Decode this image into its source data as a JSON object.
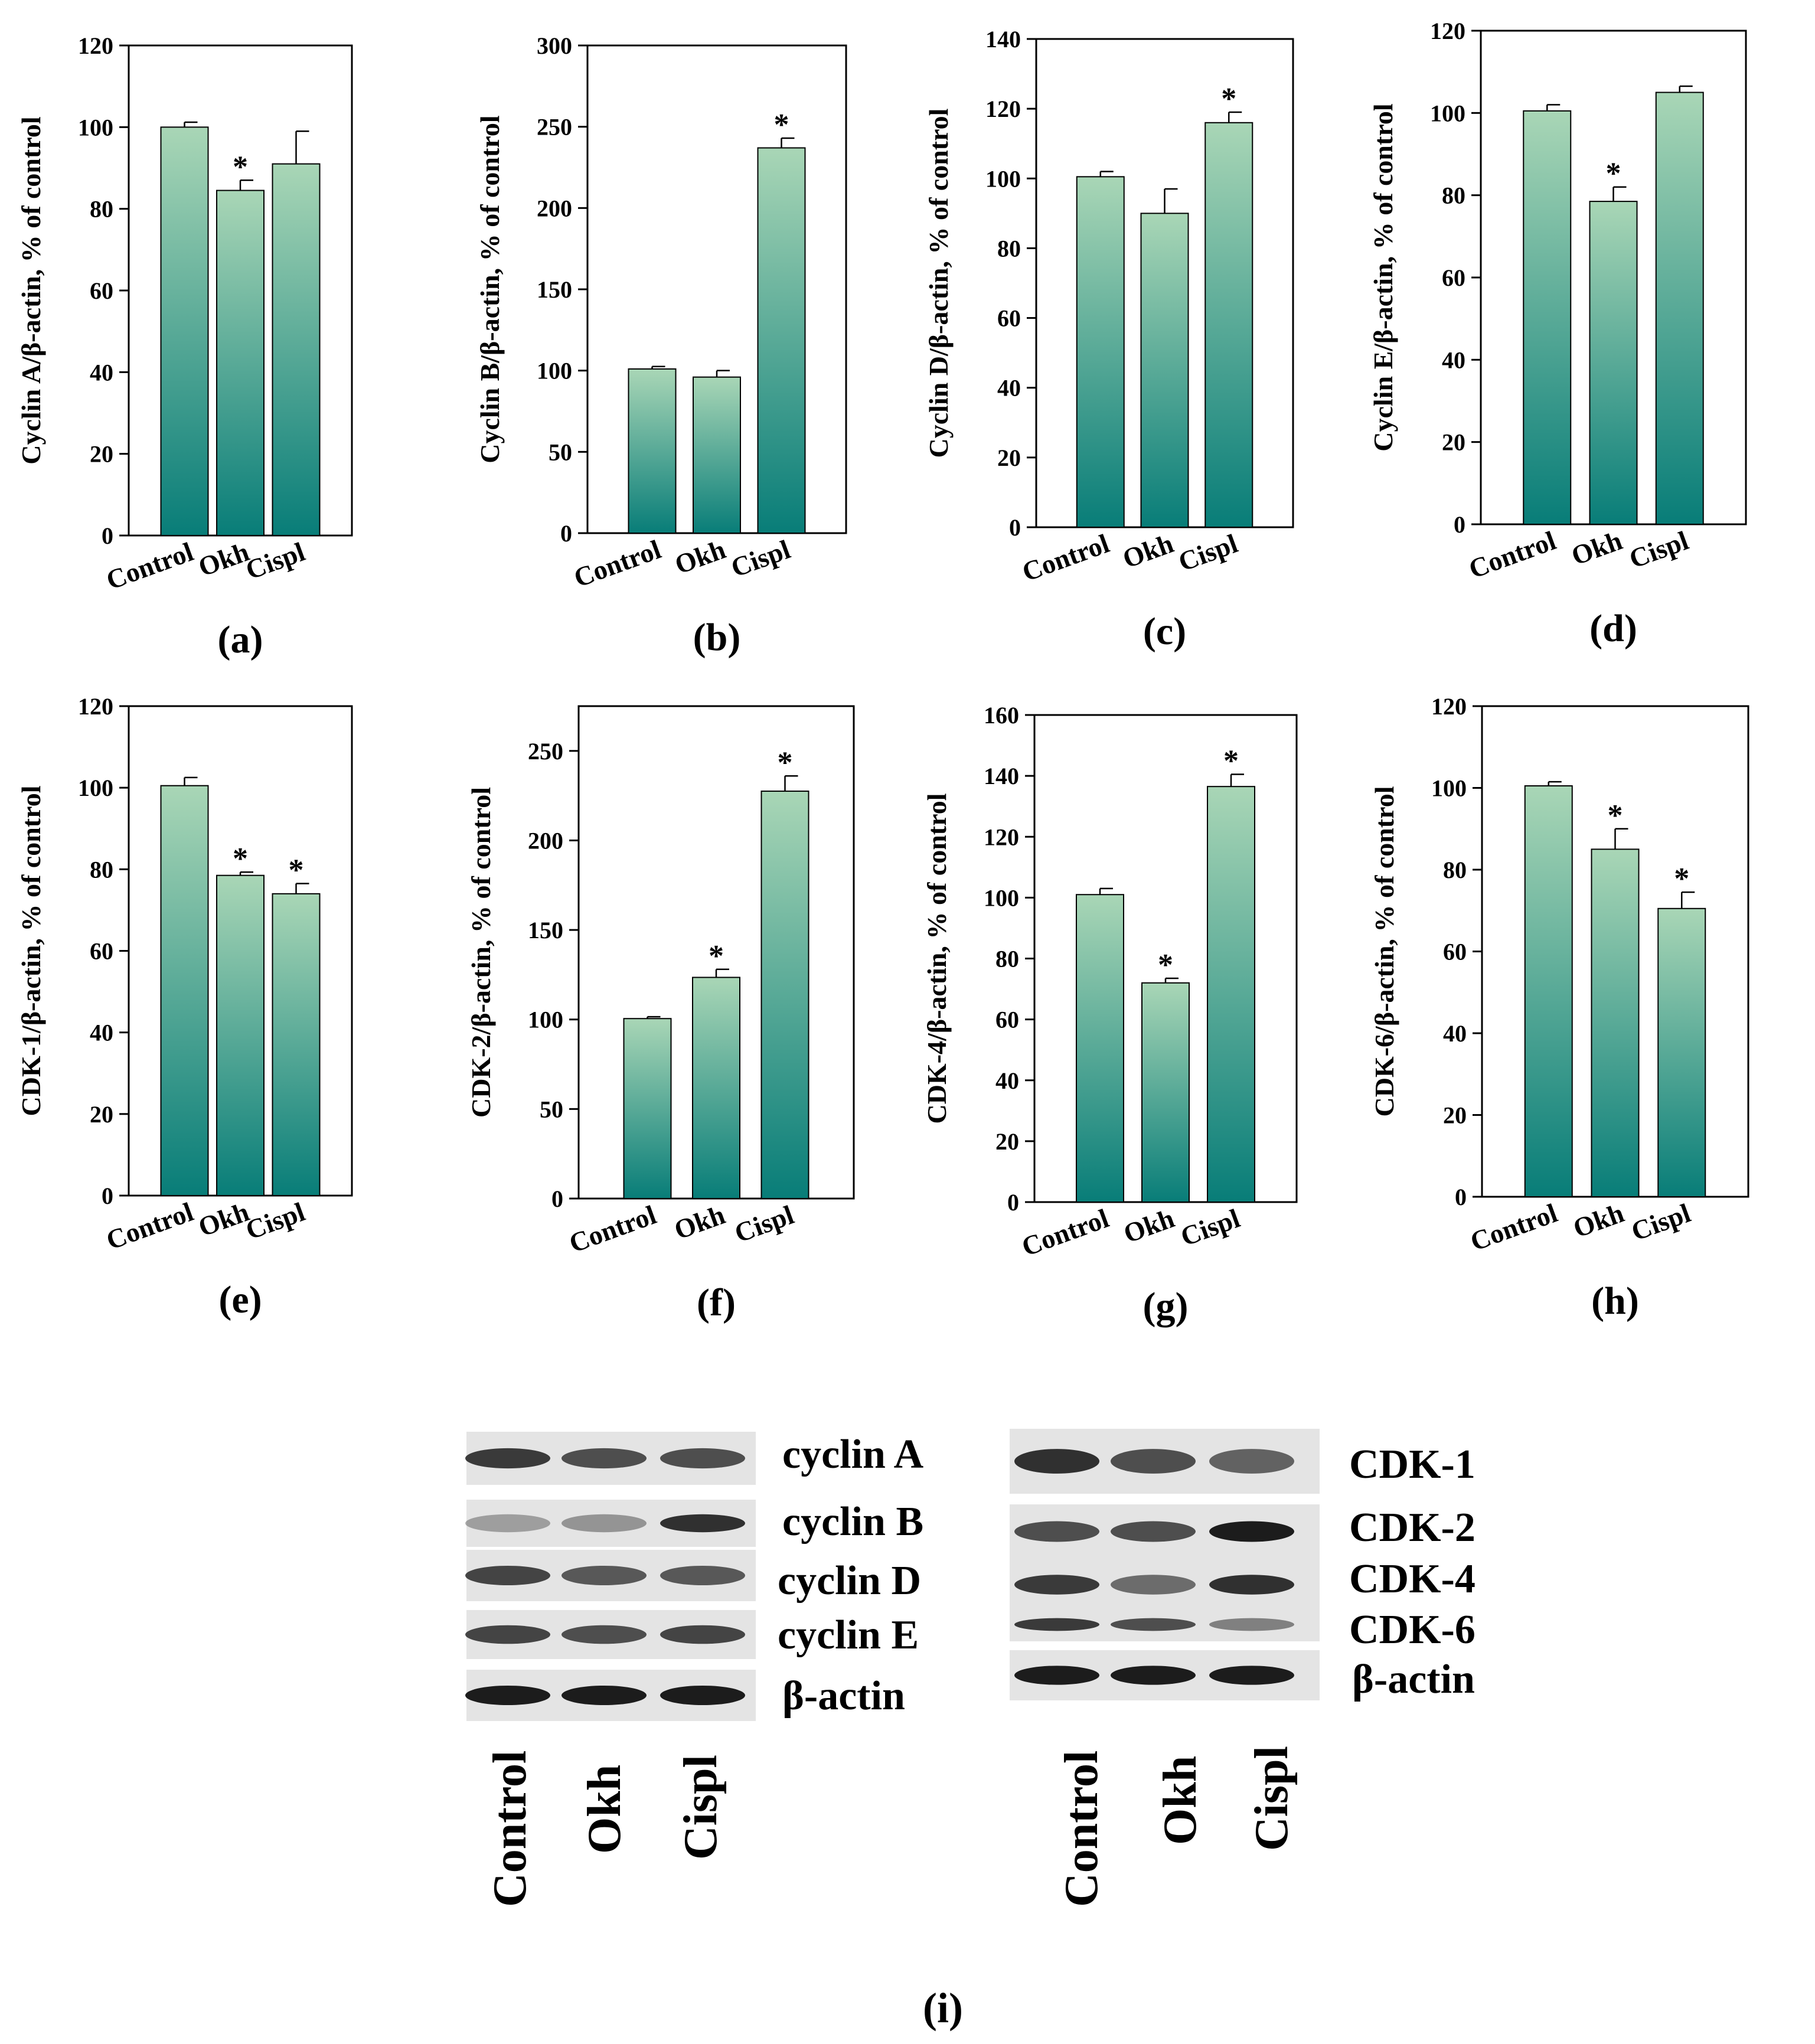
{
  "colors": {
    "bar_top": "#a9d6b6",
    "bar_bottom": "#087d78",
    "axis": "#000000",
    "background": "#ffffff",
    "blot_bg": "#e4e4e4",
    "band": "#1c1c1c"
  },
  "chart_data": [
    {
      "id": "a",
      "type": "bar",
      "panel_label": "(a)",
      "ylabel": "Cyclin A/β-actin, % of control",
      "categories": [
        "Control",
        "Okh",
        "Cispl"
      ],
      "values": [
        100,
        84.5,
        91
      ],
      "errors": [
        1.2,
        2.5,
        8
      ],
      "significant": [
        "",
        "*",
        ""
      ],
      "ylim": [
        0,
        120
      ],
      "yticks": [
        "0",
        "20",
        "40",
        "60",
        "80",
        "100",
        "120"
      ]
    },
    {
      "id": "b",
      "type": "bar",
      "panel_label": "(b)",
      "ylabel": "Cyclin B/β-actin, % of control",
      "categories": [
        "Control",
        "Okh",
        "Cispl"
      ],
      "values": [
        101,
        96,
        237
      ],
      "errors": [
        1.5,
        4,
        6
      ],
      "significant": [
        "",
        "",
        "*"
      ],
      "ylim": [
        0,
        300
      ],
      "yticks": [
        "0",
        "50",
        "100",
        "150",
        "200",
        "250",
        "300"
      ]
    },
    {
      "id": "c",
      "type": "bar",
      "panel_label": "(c)",
      "ylabel": "Cyclin D/β-actin, % of control",
      "categories": [
        "Control",
        "Okh",
        "Cispl"
      ],
      "values": [
        100.5,
        90,
        116
      ],
      "errors": [
        1.5,
        7,
        3
      ],
      "significant": [
        "",
        "",
        "*"
      ],
      "ylim": [
        0,
        140
      ],
      "yticks": [
        "0",
        "20",
        "40",
        "60",
        "80",
        "100",
        "120",
        "140"
      ]
    },
    {
      "id": "d",
      "type": "bar",
      "panel_label": "(d)",
      "ylabel": "Cyclin E/β-actin, % of control",
      "categories": [
        "Control",
        "Okh",
        "Cispl"
      ],
      "values": [
        100.5,
        78.5,
        105
      ],
      "errors": [
        1.5,
        3.5,
        1.5
      ],
      "significant": [
        "",
        "*",
        ""
      ],
      "ylim": [
        0,
        120
      ],
      "yticks": [
        "0",
        "20",
        "40",
        "60",
        "80",
        "100",
        "120"
      ]
    },
    {
      "id": "e",
      "type": "bar",
      "panel_label": "(e)",
      "ylabel": "CDK-1/β-actin, % of control",
      "categories": [
        "Control",
        "Okh",
        "Cispl"
      ],
      "values": [
        100.5,
        78.5,
        74
      ],
      "errors": [
        2,
        0.8,
        2.5
      ],
      "significant": [
        "",
        "*",
        "*"
      ],
      "ylim": [
        0,
        120
      ],
      "yticks": [
        "0",
        "20",
        "40",
        "60",
        "80",
        "100",
        "120"
      ]
    },
    {
      "id": "f",
      "type": "bar",
      "panel_label": "(f)",
      "ylabel": "CDK-2/β-actin, % of control",
      "categories": [
        "Control",
        "Okh",
        "Cispl"
      ],
      "values": [
        100.5,
        123.5,
        227.5
      ],
      "errors": [
        1,
        4.5,
        8.5
      ],
      "significant": [
        "",
        "*",
        "*"
      ],
      "ylim": [
        0,
        275
      ],
      "yticks": [
        "0",
        "50",
        "100",
        "150",
        "200",
        "250"
      ]
    },
    {
      "id": "g",
      "type": "bar",
      "panel_label": "(g)",
      "ylabel": "CDK-4/β-actin, % of control",
      "categories": [
        "Control",
        "Okh",
        "Cispl"
      ],
      "values": [
        101,
        72,
        136.5
      ],
      "errors": [
        2,
        1.5,
        4
      ],
      "significant": [
        "",
        "*",
        "*"
      ],
      "ylim": [
        0,
        160
      ],
      "yticks": [
        "0",
        "20",
        "40",
        "60",
        "80",
        "100",
        "120",
        "140",
        "160"
      ]
    },
    {
      "id": "h",
      "type": "bar",
      "panel_label": "(h)",
      "ylabel": "CDK-6/β-actin, % of control",
      "categories": [
        "Control",
        "Okh",
        "Cispl"
      ],
      "values": [
        100.5,
        85,
        70.5
      ],
      "errors": [
        1,
        5,
        4
      ],
      "significant": [
        "",
        "*",
        "*"
      ],
      "ylim": [
        0,
        120
      ],
      "yticks": [
        "0",
        "20",
        "40",
        "60",
        "80",
        "100",
        "120"
      ]
    }
  ],
  "western_blot": {
    "caption": "(i)",
    "lanes": [
      "Control",
      "Okh",
      "Cispl"
    ],
    "left_panel": {
      "labels": [
        "cyclin A",
        "cyclin B",
        "cyclin D",
        "cyclin E",
        "β-actin"
      ],
      "band_intensity": [
        [
          0.85,
          0.75,
          0.75
        ],
        [
          0.35,
          0.4,
          0.9
        ],
        [
          0.8,
          0.7,
          0.7
        ],
        [
          0.8,
          0.75,
          0.8
        ],
        [
          1.0,
          1.0,
          1.0
        ]
      ]
    },
    "right_panel": {
      "labels": [
        "CDK-1",
        "CDK-2",
        "CDK-4",
        "CDK-6",
        "β-actin"
      ],
      "band_intensity": [
        [
          0.9,
          0.75,
          0.65
        ],
        [
          0.75,
          0.75,
          1.0
        ],
        [
          0.85,
          0.6,
          0.9
        ],
        [
          0.85,
          0.75,
          0.5
        ],
        [
          1.0,
          1.0,
          1.0
        ]
      ]
    }
  }
}
